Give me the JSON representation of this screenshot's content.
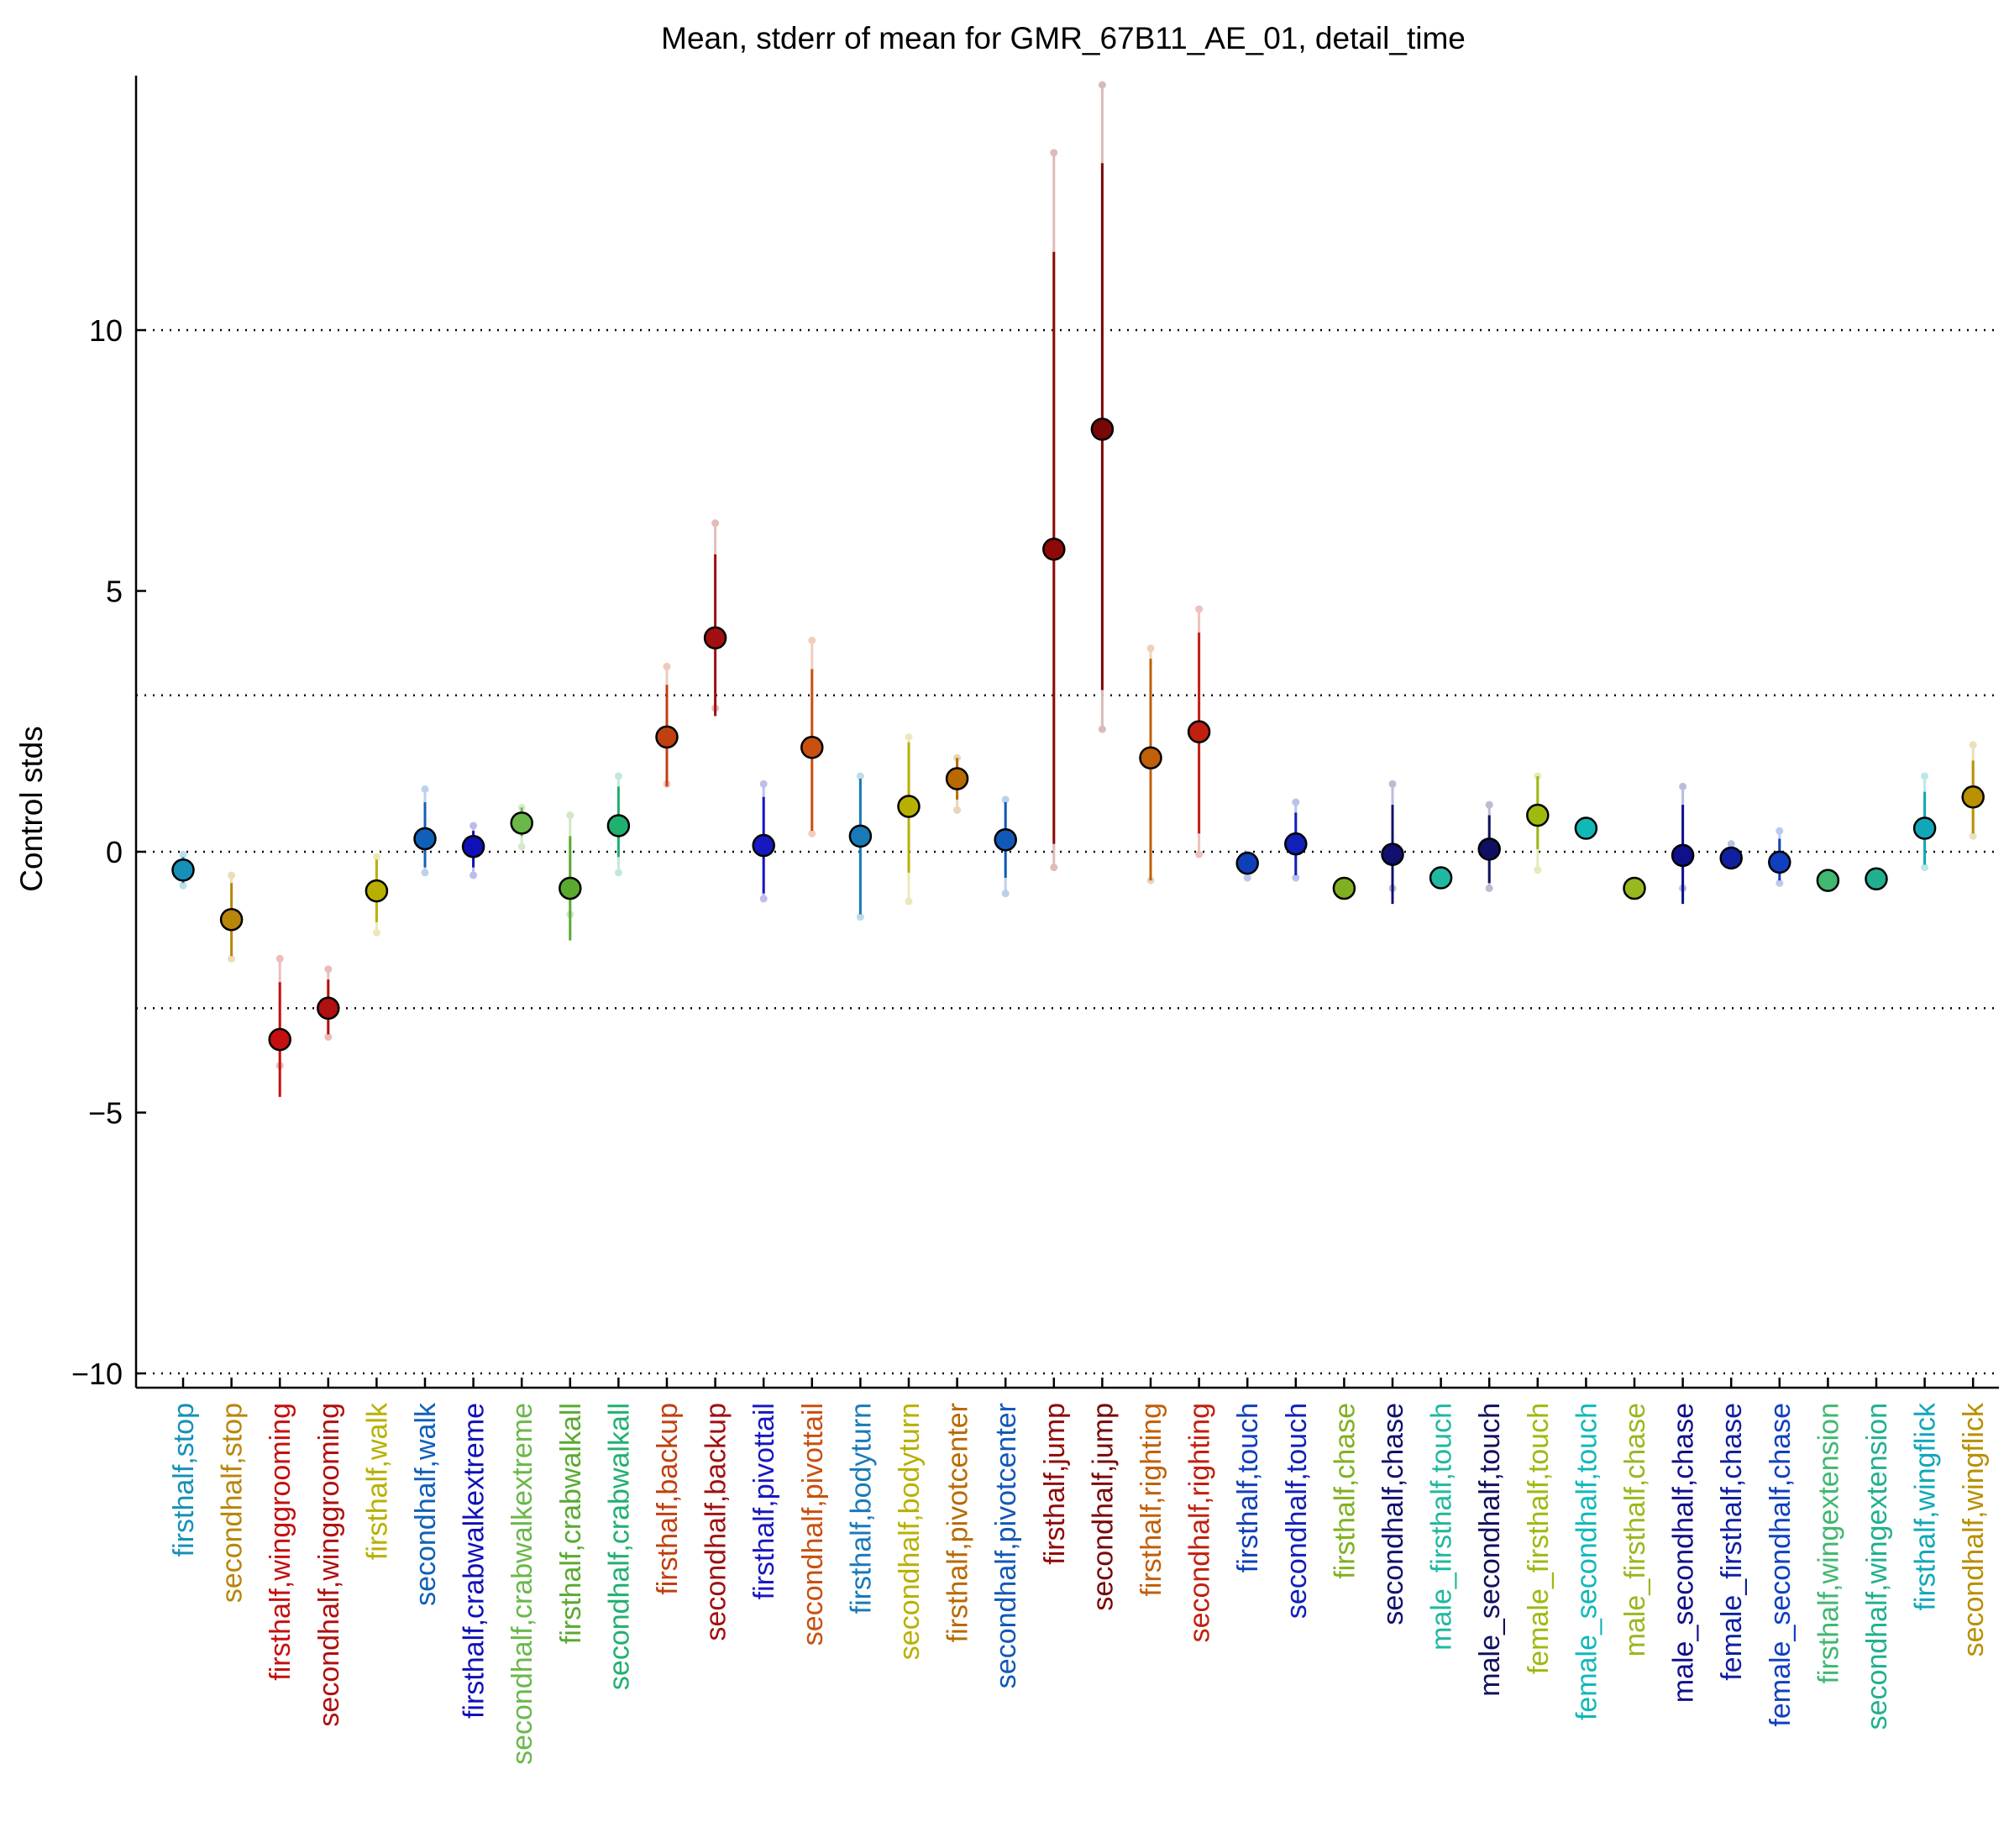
{
  "chart_data": {
    "type": "scatter",
    "title": "Mean, stderr of mean for GMR_67B11_AE_01, detail_time",
    "ylabel": "Control stds",
    "xlabel": "",
    "ylim": [
      -10.3,
      14.8
    ],
    "yticks": [
      -10,
      -5,
      0,
      5,
      10
    ],
    "yticklabels": [
      "−10",
      "−5",
      "0",
      "5",
      "10"
    ],
    "reference_lines": [
      10,
      3,
      0,
      -3,
      -10
    ],
    "grid": false,
    "categories": [
      "firsthalf,stop",
      "secondhalf,stop",
      "firsthalf,winggrooming",
      "secondhalf,winggrooming",
      "firsthalf,walk",
      "secondhalf,walk",
      "firsthalf,crabwalkextreme",
      "secondhalf,crabwalkextreme",
      "firsthalf,crabwalkall",
      "secondhalf,crabwalkall",
      "firsthalf,backup",
      "secondhalf,backup",
      "firsthalf,pivottail",
      "secondhalf,pivottail",
      "firsthalf,bodyturn",
      "secondhalf,bodyturn",
      "firsthalf,pivotcenter",
      "secondhalf,pivotcenter",
      "firsthalf,jump",
      "secondhalf,jump",
      "firsthalf,righting",
      "secondhalf,righting",
      "firsthalf,touch",
      "secondhalf,touch",
      "firsthalf,chase",
      "secondhalf,chase",
      "male_firsthalf,touch",
      "male_secondhalf,touch",
      "female_firsthalf,touch",
      "female_secondhalf,touch",
      "male_firsthalf,chase",
      "male_secondhalf,chase",
      "female_firsthalf,chase",
      "female_secondhalf,chase",
      "firsthalf,wingextension",
      "secondhalf,wingextension",
      "firsthalf,wingflick",
      "secondhalf,wingflick"
    ],
    "series": [
      {
        "mean": [
          -0.35,
          -1.3,
          -3.6,
          -3.0,
          -0.75,
          0.25,
          0.1,
          0.55,
          -0.7,
          0.5,
          2.2,
          4.1,
          0.12,
          2.0,
          0.3,
          0.87,
          1.4,
          0.23,
          5.8,
          8.1,
          1.8,
          2.3,
          -0.22,
          0.15,
          -0.7,
          -0.05,
          -0.5,
          0.05,
          0.7,
          0.45,
          -0.7,
          -0.07,
          -0.12,
          -0.2,
          -0.55,
          -0.52,
          0.45,
          1.05
        ],
        "stderr_low": [
          -0.6,
          -2.0,
          -4.7,
          -3.5,
          -1.35,
          -0.3,
          -0.3,
          0.3,
          -1.7,
          -0.1,
          1.25,
          2.6,
          -0.8,
          0.4,
          -1.2,
          -0.4,
          1.0,
          -0.5,
          0.15,
          3.1,
          -0.55,
          0.35,
          -0.4,
          -0.45,
          -0.7,
          -1.0,
          -0.5,
          -0.6,
          0.05,
          0.45,
          -0.7,
          -1.0,
          -0.25,
          -0.55,
          -0.55,
          -0.52,
          -0.25,
          0.35
        ],
        "stderr_high": [
          -0.1,
          -0.6,
          -2.5,
          -2.45,
          -0.15,
          0.95,
          0.4,
          0.85,
          0.3,
          1.25,
          3.2,
          5.7,
          1.05,
          3.5,
          1.4,
          2.1,
          1.8,
          0.95,
          11.5,
          13.2,
          3.7,
          4.2,
          -0.05,
          0.75,
          -0.7,
          0.9,
          -0.5,
          0.7,
          1.45,
          0.45,
          -0.7,
          0.9,
          0.05,
          0.25,
          -0.55,
          -0.52,
          1.15,
          1.75
        ],
        "outer_low": [
          -0.65,
          -2.05,
          -4.1,
          -3.55,
          -1.55,
          -0.4,
          -0.45,
          0.1,
          -1.2,
          -0.4,
          1.3,
          2.75,
          -0.9,
          0.35,
          -1.25,
          -0.95,
          0.8,
          -0.8,
          -0.3,
          2.35,
          -0.55,
          -0.05,
          -0.5,
          -0.5,
          -0.7,
          -0.7,
          -0.5,
          -0.7,
          -0.35,
          0.45,
          -0.7,
          -0.7,
          -0.15,
          -0.6,
          -0.55,
          -0.52,
          -0.3,
          0.3
        ],
        "outer_high": [
          -0.05,
          -0.45,
          -2.05,
          -2.25,
          -0.1,
          1.2,
          0.5,
          0.85,
          0.7,
          1.45,
          3.55,
          6.3,
          1.3,
          4.05,
          1.45,
          2.2,
          1.8,
          1.0,
          13.4,
          14.7,
          3.9,
          4.65,
          -0.05,
          0.95,
          -0.7,
          1.3,
          -0.5,
          0.9,
          1.45,
          0.45,
          -0.7,
          1.25,
          0.15,
          0.4,
          -0.55,
          -0.52,
          1.45,
          2.05
        ]
      }
    ],
    "colors": [
      "#1591b8",
      "#b8860b",
      "#c41010",
      "#b01010",
      "#b8b000",
      "#1060b8",
      "#1010b8",
      "#6ab84a",
      "#5aaa30",
      "#20b070",
      "#c04010",
      "#a01010",
      "#1818c0",
      "#c85010",
      "#1a7ab8",
      "#b8b000",
      "#b86a00",
      "#1258b8",
      "#900808",
      "#780808",
      "#c06008",
      "#c02010",
      "#1040b8",
      "#1020b8",
      "#80b020",
      "#101070",
      "#20b8a0",
      "#101060",
      "#a0b810",
      "#10b8b8",
      "#98b820",
      "#10108a",
      "#1020a0",
      "#1040c0",
      "#40b870",
      "#20b090",
      "#10a8b8",
      "#b89000"
    ]
  }
}
